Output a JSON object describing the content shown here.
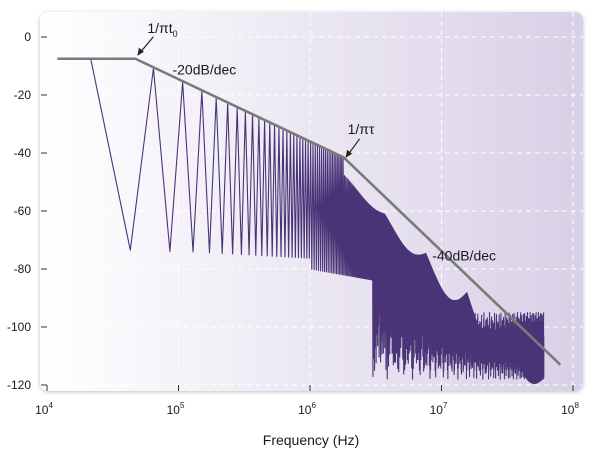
{
  "chart_data": {
    "type": "line",
    "xlabel": "Frequency (Hz)",
    "ylabel": "",
    "xscale": "log",
    "xlim": [
      10000,
      100000000
    ],
    "ylim": [
      -120,
      0
    ],
    "x_ticks": [
      {
        "base": "10",
        "exp": "4",
        "value": 10000
      },
      {
        "base": "10",
        "exp": "5",
        "value": 100000
      },
      {
        "base": "10",
        "exp": "6",
        "value": 1000000
      },
      {
        "base": "10",
        "exp": "7",
        "value": 10000000
      },
      {
        "base": "10",
        "exp": "8",
        "value": 100000000
      }
    ],
    "y_ticks": [
      {
        "label": "0",
        "value": 0
      },
      {
        "label": "-20",
        "value": -20
      },
      {
        "label": "-40",
        "value": -40
      },
      {
        "label": "-60",
        "value": -60
      },
      {
        "label": "-80",
        "value": -80
      },
      {
        "label": "-100",
        "value": -100
      },
      {
        "label": "-120",
        "value": -120
      }
    ],
    "grid": true,
    "colors": {
      "spectrum": "#4a3478",
      "envelope": "#7a7a7a",
      "background_left": "#ffffff",
      "background_right": "#d8d0e6"
    },
    "envelope": {
      "x": [
        12000,
        47000,
        1800000,
        80000000
      ],
      "y": [
        -7.5,
        -7.5,
        -41.5,
        -113
      ]
    },
    "spectrum": {
      "f0": 21500,
      "t0_corner": 47000,
      "tau_corner": 1800000,
      "f_end": 60000000,
      "peak_start": -7.5
    },
    "annotations": [
      {
        "id": "corner-t0",
        "base": "1/πt",
        "sub": "0",
        "x": 47000,
        "y": -7.5
      },
      {
        "id": "slope-20",
        "text": "-20dB/dec",
        "x": 90000,
        "y": -13
      },
      {
        "id": "corner-tau",
        "base": "1/πτ",
        "sub": "",
        "x": 1800000,
        "y": -42
      },
      {
        "id": "slope-40",
        "text": "-40dB/dec",
        "x": 8500000,
        "y": -77
      }
    ]
  }
}
